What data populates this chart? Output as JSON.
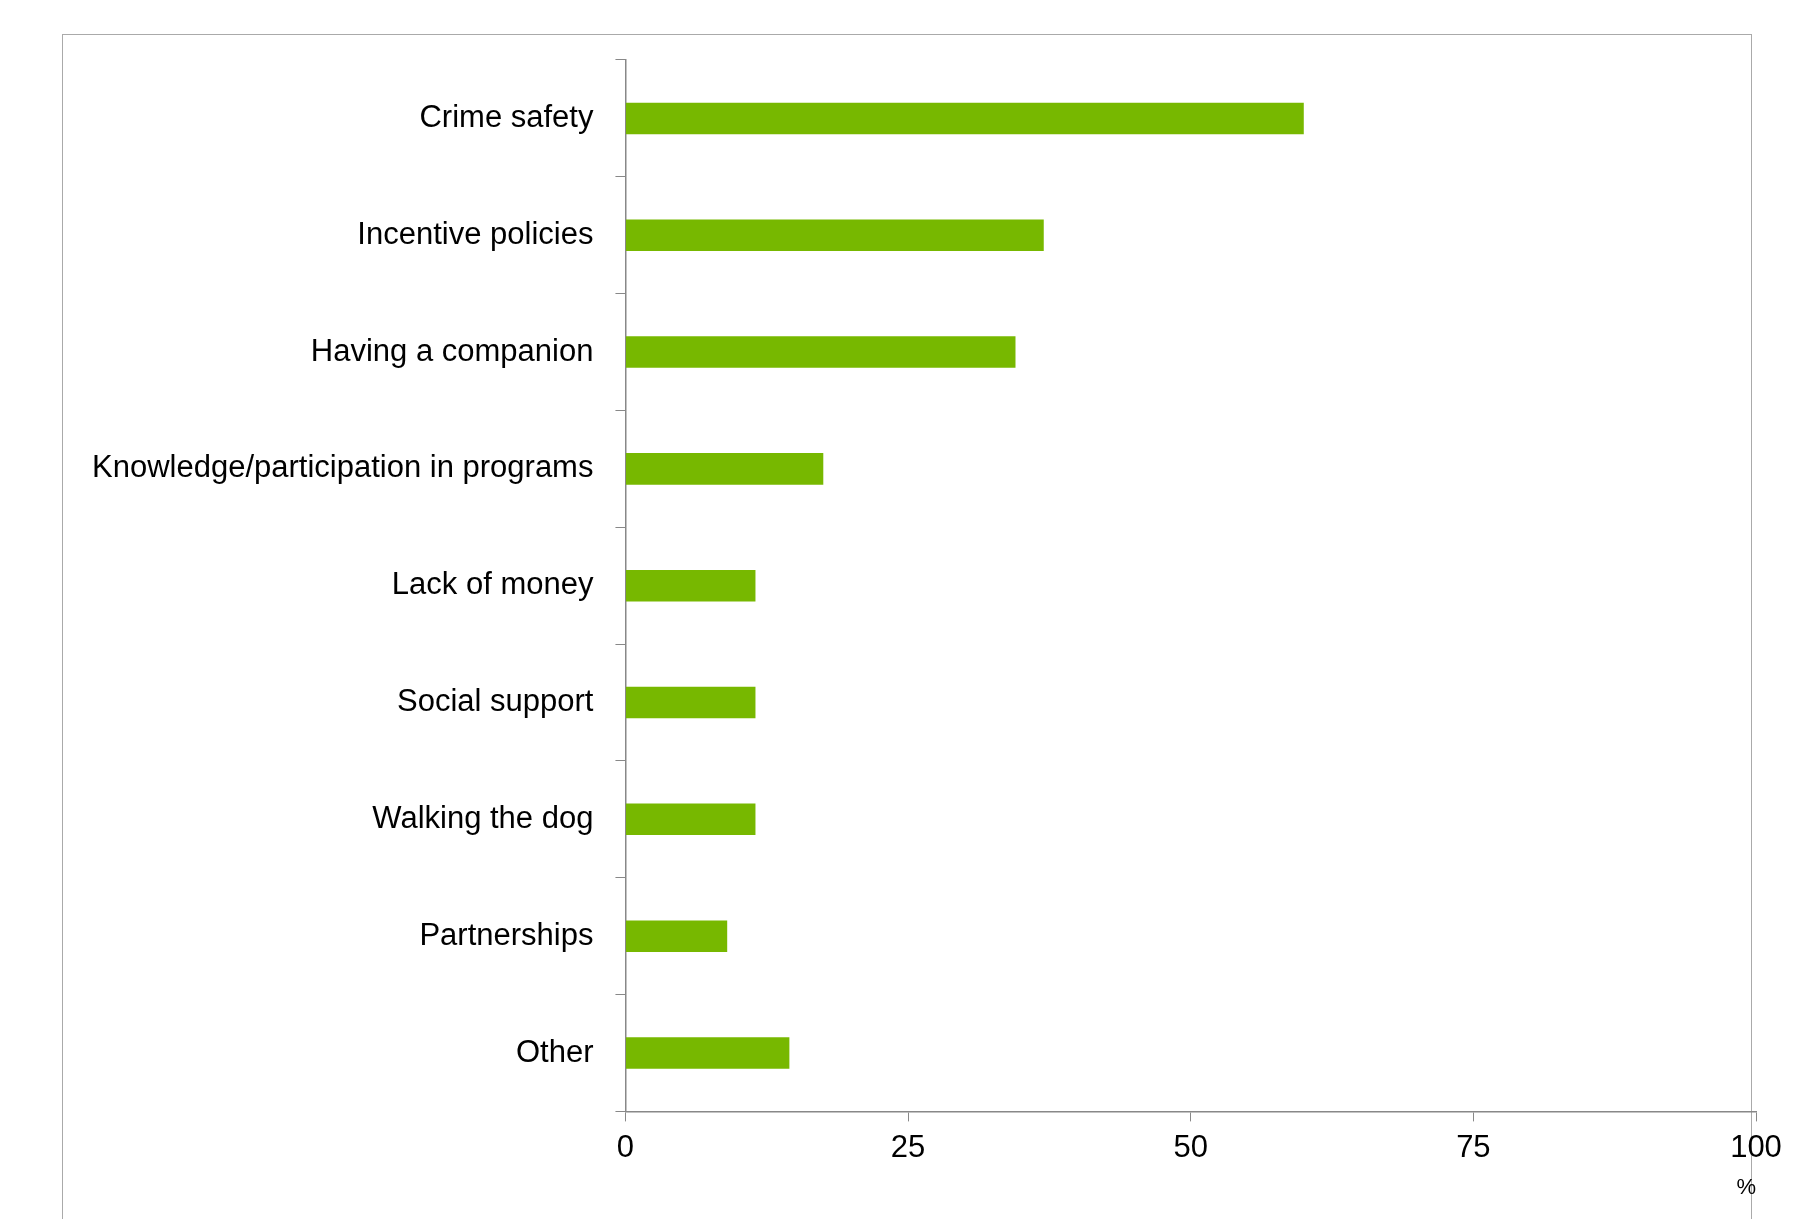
{
  "chart_data": {
    "type": "bar",
    "orientation": "horizontal",
    "xlabel": "%",
    "categories": [
      "Crime safety",
      "Incentive policies",
      "Having a companion",
      "Knowledge/participation in programs",
      "Lack of money",
      "Social support",
      "Walking the dog",
      "Partnerships",
      "Other"
    ],
    "values": [
      60,
      37,
      34.5,
      17.5,
      11.5,
      11.5,
      11.5,
      9,
      14.5
    ],
    "color": "#77b800",
    "xlim": [
      0,
      100
    ],
    "xticks": [
      0,
      25,
      50,
      75,
      100
    ],
    "grid": false,
    "legend": false
  }
}
